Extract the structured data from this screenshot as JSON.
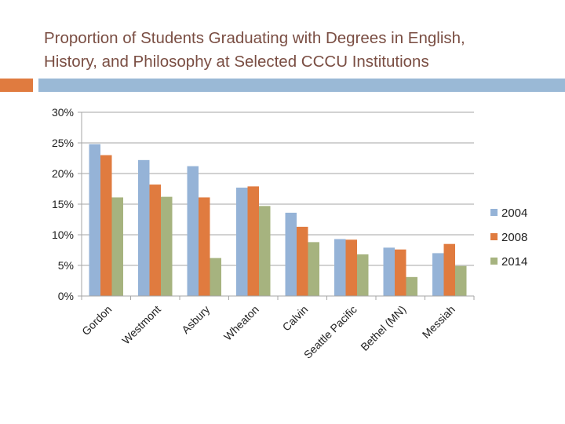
{
  "slide": {
    "title_line1": "Proportion of Students Graduating with Degrees in English,",
    "title_line2": "History, and Philosophy at Selected CCCU Institutions"
  },
  "colors": {
    "accent_orange": "#e07b3f",
    "accent_blue": "#9ab9d6",
    "title": "#7a4e43"
  },
  "chart_data": {
    "type": "bar",
    "categories": [
      "Gordon",
      "Westmont",
      "Asbury",
      "Wheaton",
      "Calvin",
      "Seattle Pacific",
      "Bethel (MN)",
      "Messiah"
    ],
    "series": [
      {
        "name": "2004",
        "color": "#95b3d7",
        "values": [
          24.8,
          22.2,
          21.2,
          17.7,
          13.6,
          9.3,
          7.9,
          7.0
        ]
      },
      {
        "name": "2008",
        "color": "#e07b3f",
        "values": [
          23.0,
          18.2,
          16.1,
          17.9,
          11.3,
          9.2,
          7.6,
          8.5
        ]
      },
      {
        "name": "2014",
        "color": "#a6b37f",
        "values": [
          16.1,
          16.2,
          6.2,
          14.7,
          8.8,
          6.8,
          3.1,
          4.9
        ]
      }
    ],
    "y_ticks": [
      "0%",
      "5%",
      "10%",
      "15%",
      "20%",
      "25%",
      "30%"
    ],
    "ylim": [
      0,
      30
    ],
    "grid": true,
    "legend_position": "right"
  }
}
